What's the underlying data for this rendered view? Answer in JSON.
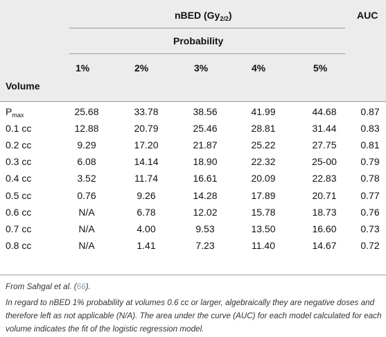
{
  "header": {
    "group_label": "nBED (Gy",
    "group_sub": "2/2",
    "group_close": ")",
    "auc_label": "AUC",
    "probability_label": "Probability",
    "volume_label": "Volume",
    "columns": [
      "1%",
      "2%",
      "3%",
      "4%",
      "5%"
    ]
  },
  "rows": [
    {
      "volume": "P",
      "volume_sub": "max",
      "values": [
        "25.68",
        "33.78",
        "38.56",
        "41.99",
        "44.68"
      ],
      "auc": "0.87"
    },
    {
      "volume": "0.1 cc",
      "volume_sub": "",
      "values": [
        "12.88",
        "20.79",
        "25.46",
        "28.81",
        "31.44"
      ],
      "auc": "0.83"
    },
    {
      "volume": "0.2 cc",
      "volume_sub": "",
      "values": [
        "9.29",
        "17.20",
        "21.87",
        "25.22",
        "27.75"
      ],
      "auc": "0.81"
    },
    {
      "volume": "0.3 cc",
      "volume_sub": "",
      "values": [
        "6.08",
        "14.14",
        "18.90",
        "22.32",
        "25-00"
      ],
      "auc": "0.79"
    },
    {
      "volume": "0.4 cc",
      "volume_sub": "",
      "values": [
        "3.52",
        "11.74",
        "16.61",
        "20.09",
        "22.83"
      ],
      "auc": "0.78"
    },
    {
      "volume": "0.5 cc",
      "volume_sub": "",
      "values": [
        "0.76",
        "9.26",
        "14.28",
        "17.89",
        "20.71"
      ],
      "auc": "0.77"
    },
    {
      "volume": "0.6 cc",
      "volume_sub": "",
      "values": [
        "N/A",
        "6.78",
        "12.02",
        "15.78",
        "18.73"
      ],
      "auc": "0.76"
    },
    {
      "volume": "0.7 cc",
      "volume_sub": "",
      "values": [
        "N/A",
        "4.00",
        "9.53",
        "13.50",
        "16.60"
      ],
      "auc": "0.73"
    },
    {
      "volume": "0.8 cc",
      "volume_sub": "",
      "values": [
        "N/A",
        "1.41",
        "7.23",
        "11.40",
        "14.67"
      ],
      "auc": "0.72"
    }
  ],
  "footnotes": {
    "source_prefix": "From Sahgal et al. (",
    "source_ref": "66",
    "source_suffix": ").",
    "note": "In regard to nBED 1% probability at volumes 0.6 cc or larger, algebraically they are negative doses and therefore left as not applicable (N/A). The area under the curve (AUC) for each model calculated for each volume indicates the fit of the logistic regression model."
  }
}
